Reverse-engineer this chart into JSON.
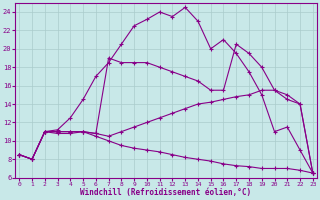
{
  "xlabel": "Windchill (Refroidissement éolien,°C)",
  "xlim": [
    0,
    23
  ],
  "ylim": [
    6,
    25
  ],
  "yticks": [
    6,
    8,
    10,
    12,
    14,
    16,
    18,
    20,
    22,
    24
  ],
  "xticks": [
    0,
    1,
    2,
    3,
    4,
    5,
    6,
    7,
    8,
    9,
    10,
    11,
    12,
    13,
    14,
    15,
    16,
    17,
    18,
    19,
    20,
    21,
    22,
    23
  ],
  "bg_color": "#c8e8e8",
  "line_color": "#880088",
  "grid_color": "#aacccc",
  "curves": [
    {
      "x": [
        0,
        1,
        2,
        3,
        4,
        5,
        6,
        7,
        8,
        9,
        10,
        11,
        12,
        13,
        14,
        15,
        16,
        17,
        18,
        19,
        20,
        21,
        22,
        23
      ],
      "y": [
        8.5,
        8.0,
        11.0,
        11.2,
        12.5,
        14.5,
        17.0,
        18.5,
        20.5,
        22.5,
        23.2,
        24.0,
        23.5,
        24.5,
        23.0,
        20.0,
        21.0,
        19.5,
        17.5,
        15.0,
        11.0,
        11.5,
        9.0,
        6.5
      ]
    },
    {
      "x": [
        0,
        1,
        2,
        3,
        4,
        5,
        6,
        7,
        8,
        9,
        10,
        11,
        12,
        13,
        14,
        15,
        16,
        17,
        18,
        19,
        20,
        21,
        22,
        23
      ],
      "y": [
        8.5,
        8.0,
        11.0,
        11.0,
        11.0,
        11.0,
        10.8,
        19.0,
        18.5,
        18.5,
        18.5,
        18.0,
        17.5,
        17.0,
        16.5,
        15.5,
        15.5,
        20.5,
        19.5,
        18.0,
        15.5,
        14.5,
        14.0,
        6.5
      ]
    },
    {
      "x": [
        0,
        1,
        2,
        3,
        4,
        5,
        6,
        7,
        8,
        9,
        10,
        11,
        12,
        13,
        14,
        15,
        16,
        17,
        18,
        19,
        20,
        21,
        22,
        23
      ],
      "y": [
        8.5,
        8.0,
        11.0,
        11.0,
        11.0,
        11.0,
        10.8,
        10.5,
        11.0,
        11.5,
        12.0,
        12.5,
        13.0,
        13.5,
        14.0,
        14.2,
        14.5,
        14.8,
        15.0,
        15.5,
        15.5,
        15.0,
        14.0,
        6.5
      ]
    },
    {
      "x": [
        0,
        1,
        2,
        3,
        4,
        5,
        6,
        7,
        8,
        9,
        10,
        11,
        12,
        13,
        14,
        15,
        16,
        17,
        18,
        19,
        20,
        21,
        22,
        23
      ],
      "y": [
        8.5,
        8.0,
        11.0,
        10.8,
        10.8,
        11.0,
        10.5,
        10.0,
        9.5,
        9.2,
        9.0,
        8.8,
        8.5,
        8.2,
        8.0,
        7.8,
        7.5,
        7.3,
        7.2,
        7.0,
        7.0,
        7.0,
        6.8,
        6.5
      ]
    }
  ]
}
